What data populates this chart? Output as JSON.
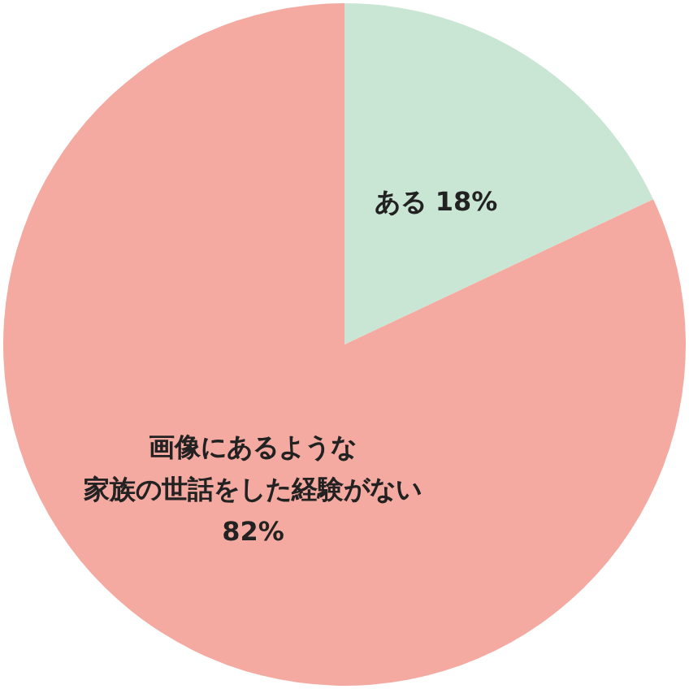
{
  "chart_data": {
    "type": "pie",
    "categories": [
      "ある",
      "画像にあるような家族の世話をした経験がない"
    ],
    "values": [
      18,
      82
    ],
    "colors": [
      "#c9e6d4",
      "#f4aaa0"
    ],
    "value_labels": [
      "18%",
      "82%"
    ],
    "legend": false
  }
}
